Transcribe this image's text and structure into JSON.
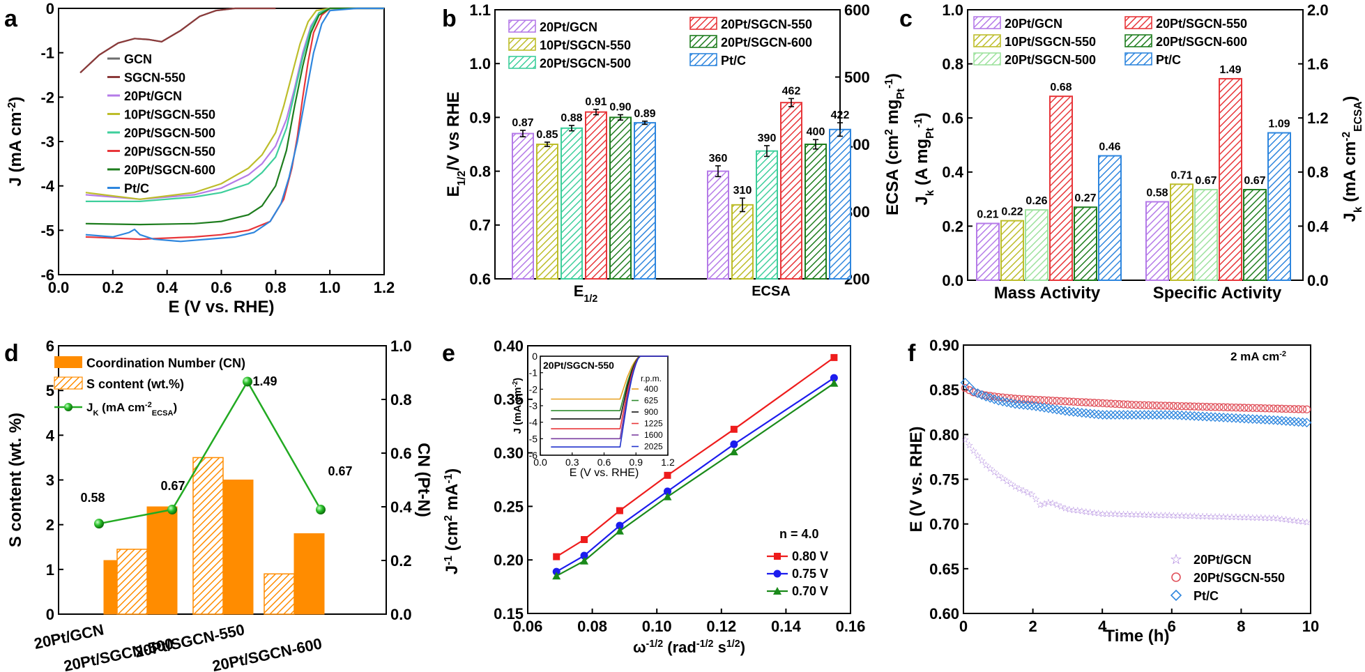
{
  "colors": {
    "GCN": "#6e6e6e",
    "SGCN-550": "#8b3a3a",
    "20Pt/GCN": "#b57be8",
    "10Pt/SGCN-550": "#bdbd2a",
    "20Pt/SGCN-500": "#3ecf9c",
    "20Pt/SGCN-550": "#e8363a",
    "20Pt/SGCN-600": "#1e7d1e",
    "Pt/C": "#2e86de",
    "CN": "#ff8c00",
    "green": "#22aa22"
  },
  "chart_data": [
    {
      "panel": "a",
      "type": "line",
      "xlabel": "E (V vs. RHE)",
      "ylabel": "J (mA cm⁻²)",
      "xlim": [
        0.0,
        1.2
      ],
      "ylim": [
        -6,
        0
      ],
      "xticks": [
        "0.0",
        "0.2",
        "0.4",
        "0.6",
        "0.8",
        "1.0",
        "1.2"
      ],
      "yticks": [
        "0",
        "-1",
        "-2",
        "-3",
        "-4",
        "-5",
        "-6"
      ],
      "legend": [
        "GCN",
        "SGCN-550",
        "20Pt/GCN",
        "10Pt/SGCN-550",
        "20Pt/SGCN-500",
        "20Pt/SGCN-550",
        "20Pt/SGCN-600",
        "Pt/C"
      ],
      "series": [
        {
          "name": "GCN",
          "x": [
            0.08,
            0.15,
            0.22,
            0.28,
            0.33,
            0.38,
            0.45,
            0.52,
            0.58,
            0.65,
            0.72,
            0.8
          ],
          "y": [
            -1.45,
            -1.05,
            -0.78,
            -0.68,
            -0.7,
            -0.75,
            -0.5,
            -0.18,
            -0.05,
            0,
            0,
            0
          ]
        },
        {
          "name": "SGCN-550",
          "x": [
            0.08,
            0.15,
            0.22,
            0.28,
            0.33,
            0.38,
            0.45,
            0.52,
            0.58,
            0.65,
            0.72,
            0.8
          ],
          "y": [
            -1.45,
            -1.05,
            -0.78,
            -0.68,
            -0.7,
            -0.75,
            -0.5,
            -0.18,
            -0.05,
            0,
            0,
            0
          ]
        },
        {
          "name": "20Pt/GCN",
          "x": [
            0.1,
            0.3,
            0.5,
            0.6,
            0.7,
            0.75,
            0.8,
            0.84,
            0.87,
            0.9,
            0.93,
            0.96,
            1.0,
            1.1,
            1.2
          ],
          "y": [
            -4.2,
            -4.3,
            -4.2,
            -4.05,
            -3.75,
            -3.5,
            -3.1,
            -2.5,
            -1.8,
            -1.0,
            -0.4,
            -0.1,
            0,
            0,
            0
          ]
        },
        {
          "name": "10Pt/SGCN-550",
          "x": [
            0.1,
            0.3,
            0.5,
            0.6,
            0.7,
            0.75,
            0.8,
            0.83,
            0.86,
            0.89,
            0.92,
            0.95,
            1.0,
            1.1,
            1.2
          ],
          "y": [
            -4.15,
            -4.3,
            -4.15,
            -3.95,
            -3.6,
            -3.3,
            -2.8,
            -2.2,
            -1.5,
            -0.8,
            -0.3,
            -0.05,
            0,
            0,
            0
          ]
        },
        {
          "name": "20Pt/SGCN-500",
          "x": [
            0.1,
            0.3,
            0.5,
            0.6,
            0.7,
            0.75,
            0.8,
            0.84,
            0.87,
            0.9,
            0.93,
            0.96,
            1.0,
            1.1,
            1.2
          ],
          "y": [
            -4.35,
            -4.35,
            -4.25,
            -4.15,
            -3.95,
            -3.7,
            -3.35,
            -2.7,
            -1.9,
            -1.1,
            -0.45,
            -0.1,
            0,
            0,
            0
          ]
        },
        {
          "name": "20Pt/SGCN-550",
          "x": [
            0.1,
            0.3,
            0.5,
            0.6,
            0.7,
            0.78,
            0.83,
            0.86,
            0.88,
            0.9,
            0.92,
            0.94,
            0.97,
            1.0,
            1.1,
            1.2
          ],
          "y": [
            -5.15,
            -5.2,
            -5.15,
            -5.1,
            -5.0,
            -4.8,
            -4.3,
            -3.6,
            -2.9,
            -2.0,
            -1.2,
            -0.55,
            -0.15,
            0,
            0,
            0
          ]
        },
        {
          "name": "20Pt/SGCN-600",
          "x": [
            0.1,
            0.3,
            0.5,
            0.6,
            0.7,
            0.75,
            0.8,
            0.84,
            0.87,
            0.9,
            0.93,
            0.96,
            1.0,
            1.1,
            1.2
          ],
          "y": [
            -4.85,
            -4.87,
            -4.85,
            -4.8,
            -4.65,
            -4.45,
            -4.0,
            -3.2,
            -2.2,
            -1.3,
            -0.55,
            -0.15,
            0,
            0,
            0
          ]
        },
        {
          "name": "Pt/C",
          "x": [
            0.1,
            0.2,
            0.26,
            0.28,
            0.3,
            0.35,
            0.45,
            0.55,
            0.65,
            0.72,
            0.78,
            0.82,
            0.85,
            0.88,
            0.91,
            0.94,
            0.97,
            1.0,
            1.1,
            1.2
          ],
          "y": [
            -5.1,
            -5.15,
            -5.05,
            -4.98,
            -5.1,
            -5.2,
            -5.25,
            -5.2,
            -5.15,
            -5.05,
            -4.8,
            -4.4,
            -3.8,
            -3.0,
            -2.0,
            -1.0,
            -0.35,
            -0.05,
            0,
            0
          ]
        }
      ]
    },
    {
      "panel": "b",
      "type": "bar",
      "categories": [
        "E1/2",
        "ECSA"
      ],
      "ylabel_left": "E1/2 /V vs RHE",
      "ylabel_right": "ECSA (cm² mg_Pt⁻¹)",
      "ylim_left": [
        0.6,
        1.1
      ],
      "ylim_right": [
        200,
        600
      ],
      "yticks_left": [
        "0.6",
        "0.7",
        "0.8",
        "0.9",
        "1.0",
        "1.1"
      ],
      "yticks_right": [
        "200",
        "300",
        "400",
        "500",
        "600"
      ],
      "series": [
        {
          "name": "20Pt/GCN",
          "values": [
            0.87,
            360
          ]
        },
        {
          "name": "10Pt/SGCN-550",
          "values": [
            0.85,
            310
          ]
        },
        {
          "name": "20Pt/SGCN-500",
          "values": [
            0.88,
            390
          ]
        },
        {
          "name": "20Pt/SGCN-550",
          "values": [
            0.91,
            462
          ]
        },
        {
          "name": "20Pt/SGCN-600",
          "values": [
            0.9,
            400
          ]
        },
        {
          "name": "Pt/C",
          "values": [
            0.89,
            422
          ]
        }
      ],
      "labels": [
        [
          "0.87",
          "0.85",
          "0.88",
          "0.91",
          "0.90",
          "0.89"
        ],
        [
          "360",
          "310",
          "390",
          "462",
          "400",
          "422"
        ]
      ]
    },
    {
      "panel": "c",
      "type": "bar",
      "categories": [
        "Mass Activity",
        "Specific Activity"
      ],
      "ylabel_left": "Jk (A mgPt⁻¹)",
      "ylabel_right": "Jk (mA cm⁻² ECSA)",
      "ylim_left": [
        0.0,
        1.0
      ],
      "ylim_right": [
        0.0,
        2.0
      ],
      "yticks_left": [
        "0.0",
        "0.2",
        "0.4",
        "0.6",
        "0.8",
        "1.0"
      ],
      "yticks_right": [
        "0.0",
        "0.4",
        "0.8",
        "1.2",
        "1.6",
        "2.0"
      ],
      "series": [
        {
          "name": "20Pt/GCN",
          "values": [
            0.21,
            0.58
          ]
        },
        {
          "name": "10Pt/SGCN-550",
          "values": [
            0.22,
            0.71
          ]
        },
        {
          "name": "20Pt/SGCN-500",
          "values": [
            0.26,
            0.67
          ]
        },
        {
          "name": "20Pt/SGCN-550",
          "values": [
            0.68,
            1.49
          ]
        },
        {
          "name": "20Pt/SGCN-600",
          "values": [
            0.27,
            0.67
          ]
        },
        {
          "name": "Pt/C",
          "values": [
            0.46,
            1.09
          ]
        }
      ],
      "labels": [
        [
          "0.21",
          "0.22",
          "0.26",
          "0.68",
          "0.27",
          "0.46"
        ],
        [
          "0.58",
          "0.71",
          "0.67",
          "1.49",
          "0.67",
          "1.09"
        ]
      ]
    },
    {
      "panel": "d",
      "type": "bar",
      "categories": [
        "20Pt/GCN",
        "20Pt/SGCN-500",
        "20Pt/SGCN-550",
        "20Pt/SGCN-600"
      ],
      "ylabel_left": "S content (wt. %)",
      "ylabel_right": "CN (Pt-N)",
      "ylim_left": [
        0,
        6
      ],
      "ylim_right": [
        0.0,
        1.0
      ],
      "yticks_left": [
        "0",
        "1",
        "2",
        "3",
        "4",
        "5",
        "6"
      ],
      "yticks_right": [
        "0.0",
        "0.2",
        "0.4",
        "0.6",
        "0.8",
        "1.0"
      ],
      "legend": [
        "Coordination Number (CN)",
        "S content (wt.%)",
        "JK (mA cm⁻² ECSA)"
      ],
      "series": [
        {
          "name": "Coordination Number (CN)",
          "values": [
            0.2,
            0.4,
            0.5,
            0.3
          ]
        },
        {
          "name": "S content (wt.%)",
          "values": [
            0,
            1.45,
            3.5,
            0.9
          ]
        },
        {
          "name": "JK (mA cm⁻² ECSA)",
          "values": [
            0.58,
            0.67,
            1.49,
            0.67
          ]
        }
      ],
      "labels": [
        "0.58",
        "0.67",
        "1.49",
        "0.67"
      ]
    },
    {
      "panel": "e",
      "type": "scatter",
      "xlabel": "ω⁻¹ᐟ² (rad⁻¹ᐟ² s¹ᐟ²)",
      "ylabel": "J⁻¹ (cm² mA⁻¹)",
      "xlim": [
        0.06,
        0.16
      ],
      "ylim": [
        0.15,
        0.4
      ],
      "xticks": [
        "0.06",
        "0.08",
        "0.10",
        "0.12",
        "0.14",
        "0.16"
      ],
      "yticks": [
        "0.15",
        "0.20",
        "0.25",
        "0.30",
        "0.35",
        "0.40"
      ],
      "annotation": "n = 4.0",
      "series": [
        {
          "name": "0.80 V",
          "x": [
            0.0689,
            0.0775,
            0.0885,
            0.1033,
            0.1239,
            0.1549
          ],
          "y": [
            0.203,
            0.219,
            0.246,
            0.279,
            0.322,
            0.389
          ]
        },
        {
          "name": "0.75 V",
          "x": [
            0.0689,
            0.0775,
            0.0885,
            0.1033,
            0.1239,
            0.1549
          ],
          "y": [
            0.189,
            0.204,
            0.232,
            0.264,
            0.308,
            0.37
          ]
        },
        {
          "name": "0.70 V",
          "x": [
            0.0689,
            0.0775,
            0.0885,
            0.1033,
            0.1239,
            0.1549
          ],
          "y": [
            0.185,
            0.199,
            0.227,
            0.259,
            0.301,
            0.365
          ]
        }
      ],
      "inset": {
        "title": "20Pt/SGCN-550",
        "xlabel": "E (V vs. RHE)",
        "ylabel": "J (mA cm⁻²)",
        "xlim": [
          0.0,
          1.2
        ],
        "ylim": [
          -6,
          0
        ],
        "xticks": [
          "0.0",
          "0.3",
          "0.6",
          "0.9",
          "1.2"
        ],
        "yticks": [
          "0",
          "-1",
          "-2",
          "-3",
          "-4",
          "-5",
          "-6"
        ],
        "legend_title": "r.p.m.",
        "series": [
          {
            "name": "400",
            "plateau": -2.6,
            "color": "#e8a020"
          },
          {
            "name": "625",
            "plateau": -3.3,
            "color": "#2e8b2e"
          },
          {
            "name": "900",
            "plateau": -3.8,
            "color": "#111111"
          },
          {
            "name": "1225",
            "plateau": -4.4,
            "color": "#e8363a"
          },
          {
            "name": "1600",
            "plateau": -5.0,
            "color": "#7b3fa0"
          },
          {
            "name": "2025",
            "plateau": -5.5,
            "color": "#2233cc"
          }
        ]
      }
    },
    {
      "panel": "f",
      "type": "scatter",
      "xlabel": "Time (h)",
      "ylabel": "E (V vs. RHE)",
      "xlim": [
        0,
        10
      ],
      "ylim": [
        0.6,
        0.9
      ],
      "xticks": [
        "0",
        "2",
        "4",
        "6",
        "8",
        "10"
      ],
      "yticks": [
        "0.60",
        "0.65",
        "0.70",
        "0.75",
        "0.80",
        "0.85",
        "0.90"
      ],
      "annotation": "2 mA cm⁻²",
      "series": [
        {
          "name": "20Pt/GCN",
          "x": [
            0.05,
            0.3,
            0.6,
            1,
            1.5,
            2,
            2.2,
            2.5,
            3,
            4,
            5,
            6,
            7,
            8,
            9,
            10
          ],
          "y": [
            0.795,
            0.782,
            0.768,
            0.755,
            0.742,
            0.733,
            0.722,
            0.725,
            0.717,
            0.712,
            0.711,
            0.71,
            0.709,
            0.708,
            0.707,
            0.702
          ]
        },
        {
          "name": "20Pt/SGCN-550",
          "x": [
            0.05,
            0.3,
            0.6,
            1,
            1.5,
            2,
            3,
            4,
            5,
            6,
            7,
            8,
            9,
            10
          ],
          "y": [
            0.852,
            0.847,
            0.844,
            0.842,
            0.84,
            0.839,
            0.837,
            0.835,
            0.833,
            0.832,
            0.831,
            0.83,
            0.829,
            0.828
          ]
        },
        {
          "name": "Pt/C",
          "x": [
            0.05,
            0.3,
            0.6,
            1,
            1.5,
            2,
            3,
            4,
            5,
            6,
            7,
            8,
            9,
            10
          ],
          "y": [
            0.858,
            0.848,
            0.843,
            0.838,
            0.834,
            0.832,
            0.826,
            0.822,
            0.822,
            0.822,
            0.82,
            0.818,
            0.816,
            0.813
          ]
        }
      ]
    }
  ],
  "panels": {
    "a": {
      "letter": "a"
    },
    "b": {
      "letter": "b"
    },
    "c": {
      "letter": "c"
    },
    "d": {
      "letter": "d"
    },
    "e": {
      "letter": "e"
    },
    "f": {
      "letter": "f"
    }
  }
}
